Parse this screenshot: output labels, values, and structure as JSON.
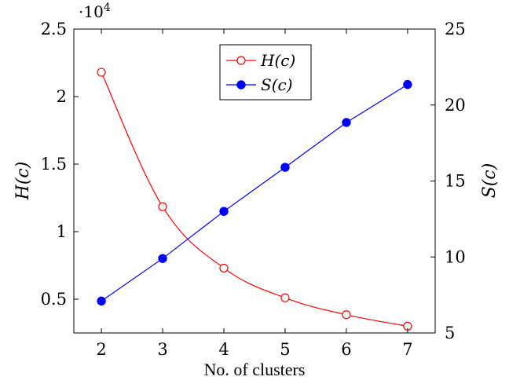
{
  "chart_data": {
    "type": "line",
    "title": "",
    "xlabel": "No. of clusters",
    "ylabel_left": "H(c)",
    "ylabel_right": "S(c)",
    "left_axis_multiplier": "·10",
    "left_axis_exponent": "4",
    "x": [
      2,
      3,
      4,
      5,
      6,
      7
    ],
    "xlim": [
      1.55,
      7.45
    ],
    "ylim_left": [
      0.25,
      2.5
    ],
    "ylim_right": [
      5,
      25
    ],
    "xticks": [
      "2",
      "3",
      "4",
      "5",
      "6",
      "7"
    ],
    "yticks_left": [
      "0.5",
      "1",
      "1.5",
      "2",
      "2.5"
    ],
    "yticks_right": [
      "5",
      "10",
      "15",
      "20",
      "25"
    ],
    "grid": false,
    "legend_position": "top-center",
    "series": [
      {
        "name": "H(c)",
        "axis": "left",
        "color": "#ff0000",
        "marker": "open-circle",
        "smooth": true,
        "values": [
          2.18,
          1.185,
          0.73,
          0.51,
          0.385,
          0.3
        ]
      },
      {
        "name": "S(c)",
        "axis": "right",
        "color": "#0000ff",
        "marker": "filled-circle",
        "smooth": false,
        "values": [
          7.1,
          9.9,
          13.0,
          15.9,
          18.85,
          21.35
        ]
      }
    ]
  }
}
